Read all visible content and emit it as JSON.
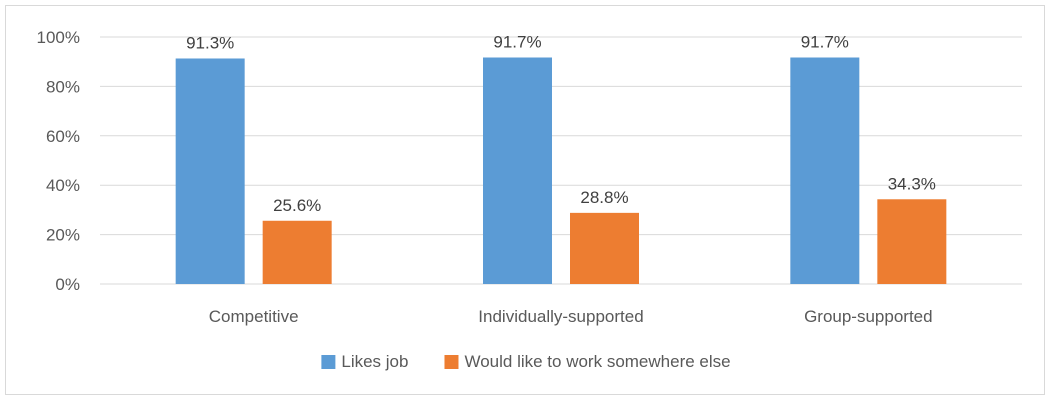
{
  "chart_data": {
    "type": "bar",
    "title": "",
    "xlabel": "",
    "ylabel": "",
    "categories": [
      "Competitive",
      "Individually-supported",
      "Group-supported"
    ],
    "series": [
      {
        "name": "Likes job",
        "values": [
          91.3,
          91.7,
          91.7
        ],
        "labels": [
          "91.3%",
          "91.7%",
          "91.7%"
        ],
        "color": "#5b9bd5"
      },
      {
        "name": "Would like to work somewhere else",
        "values": [
          25.6,
          28.8,
          34.3
        ],
        "labels": [
          "25.6%",
          "28.8%",
          "34.3%"
        ],
        "color": "#ed7d31"
      }
    ],
    "ylim": [
      0,
      100
    ],
    "yticks": [
      0,
      20,
      40,
      60,
      80,
      100
    ],
    "ytick_labels": [
      "0%",
      "20%",
      "40%",
      "60%",
      "80%",
      "100%"
    ],
    "grid": true,
    "gridline_color": "#d9d9d9",
    "legend_position": "bottom"
  }
}
